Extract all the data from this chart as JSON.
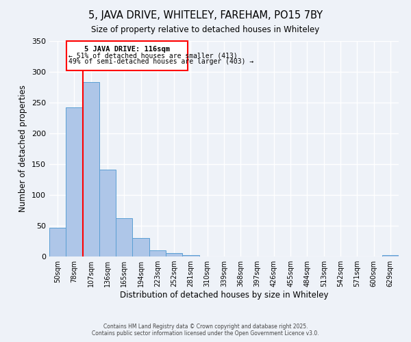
{
  "title": "5, JAVA DRIVE, WHITELEY, FAREHAM, PO15 7BY",
  "subtitle": "Size of property relative to detached houses in Whiteley",
  "xlabel": "Distribution of detached houses by size in Whiteley",
  "ylabel": "Number of detached properties",
  "bar_color": "#aec6e8",
  "bar_edge_color": "#5a9fd4",
  "background_color": "#eef2f8",
  "grid_color": "#ffffff",
  "bin_labels": [
    "50sqm",
    "78sqm",
    "107sqm",
    "136sqm",
    "165sqm",
    "194sqm",
    "223sqm",
    "252sqm",
    "281sqm",
    "310sqm",
    "339sqm",
    "368sqm",
    "397sqm",
    "426sqm",
    "455sqm",
    "484sqm",
    "513sqm",
    "542sqm",
    "571sqm",
    "600sqm",
    "629sqm"
  ],
  "bin_values": [
    47,
    242,
    283,
    141,
    62,
    30,
    10,
    6,
    2,
    0,
    0,
    0,
    0,
    0,
    0,
    0,
    0,
    0,
    0,
    0,
    2
  ],
  "ylim": [
    0,
    350
  ],
  "yticks": [
    0,
    50,
    100,
    150,
    200,
    250,
    300,
    350
  ],
  "annotation_title": "5 JAVA DRIVE: 116sqm",
  "annotation_line1": "← 51% of detached houses are smaller (413)",
  "annotation_line2": "49% of semi-detached houses are larger (403) →",
  "footer1": "Contains HM Land Registry data © Crown copyright and database right 2025.",
  "footer2": "Contains public sector information licensed under the Open Government Licence v3.0."
}
